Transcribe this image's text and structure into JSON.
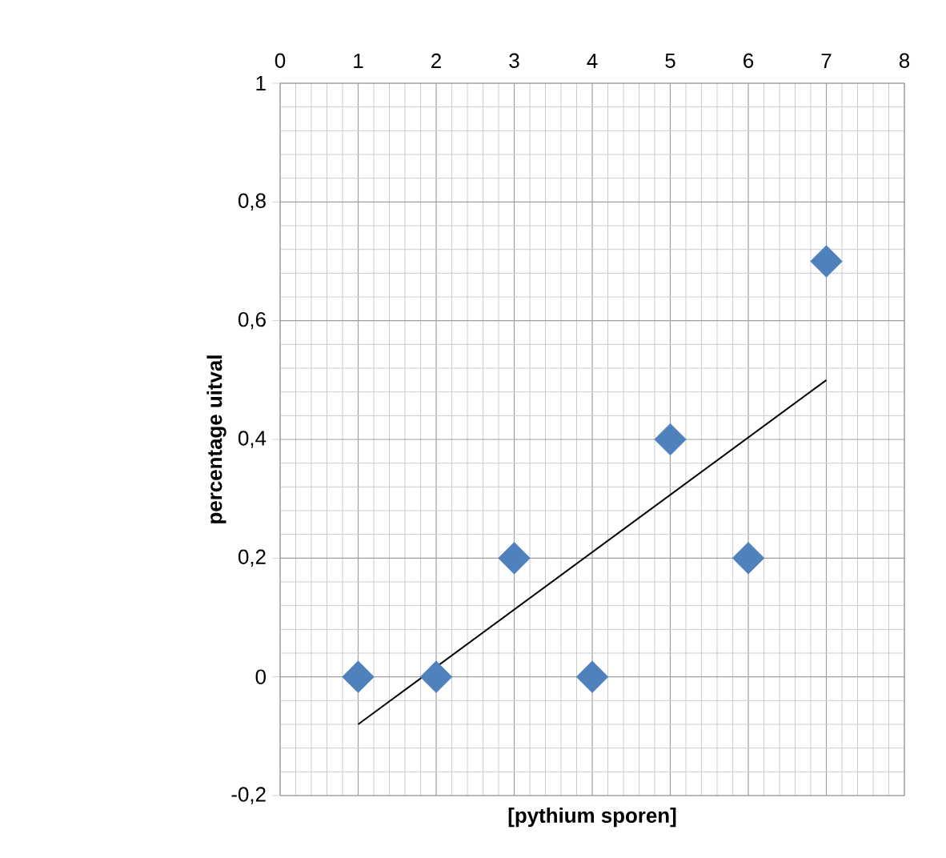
{
  "chart_data": {
    "type": "scatter",
    "xlabel": "[pythium sporen]",
    "ylabel": "percentage uitval",
    "x": [
      1,
      2,
      3,
      4,
      5,
      6,
      7
    ],
    "series": [
      {
        "color": "#4f81bd",
        "marker": "diamond",
        "values": [
          0,
          0,
          0.2,
          0,
          0.4,
          0.2,
          0.7
        ]
      },
      {
        "type": "line",
        "color": "#000000",
        "marker": "none",
        "line_style": "solid",
        "x": [
          1,
          7
        ],
        "values": [
          -0.08,
          0.5
        ]
      }
    ],
    "xlim": [
      0,
      8
    ],
    "xticks": [
      0,
      1,
      2,
      3,
      4,
      5,
      6,
      7,
      8
    ],
    "ylim": [
      -0.2,
      1
    ],
    "yticks": [
      {
        "value": -0.2,
        "label": "-0,2"
      },
      0,
      {
        "value": 0.2,
        "label": "0,2"
      },
      {
        "value": 0.4,
        "label": "0,4"
      },
      {
        "value": 0.6,
        "label": "0,6"
      },
      {
        "value": 0.8,
        "label": "0,8"
      },
      1
    ],
    "grid": true
  }
}
